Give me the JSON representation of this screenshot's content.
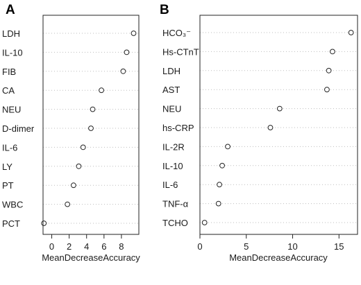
{
  "chart_data": [
    {
      "type": "scatter",
      "panel_label": "A",
      "xlabel": "MeanDecreaseAccuracy",
      "ylabel": "",
      "xlim": [
        -1,
        10
      ],
      "xticks": [
        0,
        2,
        4,
        6,
        8
      ],
      "grid": "dotted row guides",
      "categories": [
        "LDH",
        "IL-10",
        "FIB",
        "CA",
        "NEU",
        "D-dimer",
        "IL-6",
        "LY",
        "PT",
        "WBC",
        "PCT"
      ],
      "values": [
        9.4,
        8.6,
        8.2,
        5.7,
        4.7,
        4.5,
        3.6,
        3.1,
        2.5,
        1.8,
        -0.9
      ]
    },
    {
      "type": "scatter",
      "panel_label": "B",
      "xlabel": "MeanDecreaseAccuracy",
      "ylabel": "",
      "xlim": [
        0,
        17
      ],
      "xticks": [
        0,
        5,
        10,
        15
      ],
      "grid": "dotted row guides",
      "categories": [
        "HCO₃⁻",
        "Hs-CTnT",
        "LDH",
        "AST",
        "NEU",
        "hs-CRP",
        "IL-2R",
        "IL-10",
        "IL-6",
        "TNF-α",
        "TCHO"
      ],
      "values": [
        16.3,
        14.3,
        13.9,
        13.7,
        8.6,
        7.6,
        3.0,
        2.4,
        2.1,
        2.0,
        0.5
      ]
    }
  ]
}
